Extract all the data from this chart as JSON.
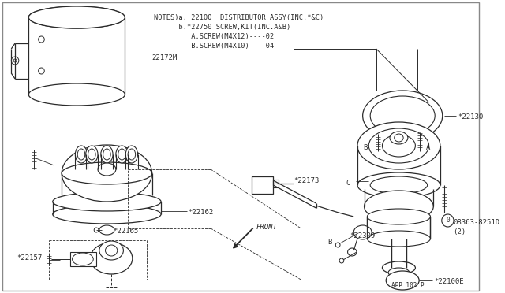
{
  "bg_color": "#ffffff",
  "border_color": "#888888",
  "lc": "#2a2a2a",
  "title_notes": "NOTES)a. 22100  DISTRIBUTOR ASSY(INC.*&C)",
  "note_b": "      b.*22750 SCREW,KIT(INC.A&B)",
  "note_a_screw": "         A.SCREW(M4X12)----02",
  "note_b_screw": "         B.SCREW(M4X10)----04",
  "page_ref": "APP 102 P",
  "label_22172M": "22172M",
  "label_22162": "*22162",
  "label_22165": "*22165",
  "label_22157": "*22157",
  "label_22173": "*22173",
  "label_22130": "*22130",
  "label_22309": "*22309",
  "label_08363": "08363-8251D",
  "label_08363b": "(2)",
  "label_22100E": "*22100E",
  "label_A": "A",
  "label_B": "B",
  "label_C": "C",
  "label_FRONT": "FRONT"
}
